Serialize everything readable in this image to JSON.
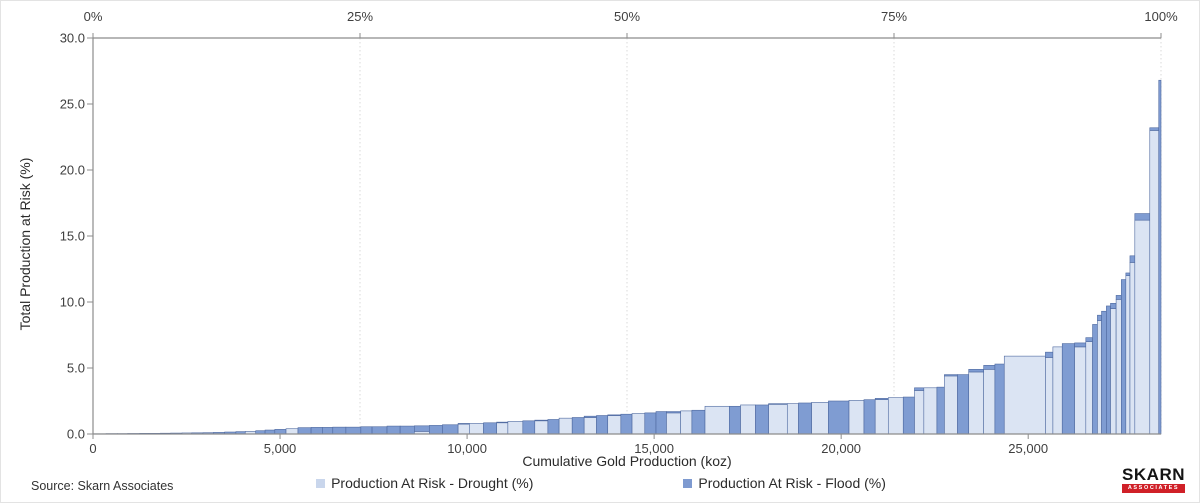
{
  "source_note": "Source: Skarn Associates",
  "logo": {
    "line1": "SKARN",
    "line2": "ASSOCIATES",
    "red": "#d02028"
  },
  "chart_data": {
    "type": "bar",
    "variant": "variable-width stacked cost-curve, mines sorted ascending by total production at risk",
    "title": "",
    "xlabel": "Cumulative Gold Production (koz)",
    "ylabel": "Total Production at Risk (%)",
    "ylim": [
      0,
      30
    ],
    "y_ticks": [
      "0.0",
      "5.0",
      "10.0",
      "15.0",
      "20.0",
      "25.0",
      "30.0"
    ],
    "x_ticks_koz": [
      0,
      5000,
      10000,
      15000,
      20000,
      25000
    ],
    "x_tick_labels": [
      "0",
      "5,000",
      "10,000",
      "15,000",
      "20,000",
      "25,000"
    ],
    "top_axis_ticks_pct": [
      0,
      25,
      50,
      75,
      100
    ],
    "top_axis_tick_labels": [
      "0%",
      "25%",
      "50%",
      "75%",
      "100%"
    ],
    "total_koz": 28550,
    "grid": "vertical dotted gridlines at 25%, 50%, 75%, 100%",
    "legend_position": "bottom-center",
    "series": [
      {
        "name": "Production At Risk - Drought (%)",
        "color": "#dbe4f3",
        "swatch_color": "#c9d6ec",
        "stack_order": "bottom"
      },
      {
        "name": "Production At Risk - Flood (%)",
        "color": "#7f9cd2",
        "swatch_color": "#7e9ad0",
        "stack_order": "top"
      }
    ],
    "bar_border_color": "#4d689f",
    "bars_note": "each bar = [width_koz, drought_pct, flood_pct]; cumulative widths sum to total_koz",
    "bars": [
      [
        350,
        0,
        0.02
      ],
      [
        300,
        0,
        0.03
      ],
      [
        280,
        0.03,
        0
      ],
      [
        320,
        0,
        0.04
      ],
      [
        250,
        0,
        0.05
      ],
      [
        300,
        0.05,
        0
      ],
      [
        280,
        0,
        0.06
      ],
      [
        300,
        0,
        0.07
      ],
      [
        260,
        0.08,
        0
      ],
      [
        300,
        0,
        0.09
      ],
      [
        280,
        0,
        0.1
      ],
      [
        300,
        0,
        0.12
      ],
      [
        300,
        0,
        0.15
      ],
      [
        250,
        0,
        0.18
      ],
      [
        280,
        0.2,
        0
      ],
      [
        250,
        0,
        0.25
      ],
      [
        260,
        0,
        0.3
      ],
      [
        300,
        0,
        0.35
      ],
      [
        320,
        0.4,
        0
      ],
      [
        350,
        0,
        0.48
      ],
      [
        300,
        0,
        0.5
      ],
      [
        280,
        0,
        0.5
      ],
      [
        350,
        0,
        0.52
      ],
      [
        400,
        0,
        0.52
      ],
      [
        300,
        0,
        0.55
      ],
      [
        400,
        0,
        0.55
      ],
      [
        350,
        0,
        0.6
      ],
      [
        380,
        0,
        0.6
      ],
      [
        400,
        0.2,
        0.42
      ],
      [
        350,
        0,
        0.65
      ],
      [
        420,
        0,
        0.7
      ],
      [
        300,
        0.75,
        0.05
      ],
      [
        380,
        0.8,
        0
      ],
      [
        350,
        0,
        0.85
      ],
      [
        300,
        0.85,
        0.05
      ],
      [
        400,
        0.95,
        0
      ],
      [
        320,
        0,
        1.0
      ],
      [
        350,
        1.0,
        0.05
      ],
      [
        300,
        0,
        1.1
      ],
      [
        350,
        1.2,
        0
      ],
      [
        320,
        0,
        1.25
      ],
      [
        330,
        1.25,
        0.1
      ],
      [
        300,
        0,
        1.4
      ],
      [
        350,
        1.4,
        0.05
      ],
      [
        300,
        0,
        1.5
      ],
      [
        340,
        1.55,
        0
      ],
      [
        300,
        0,
        1.6
      ],
      [
        280,
        0,
        1.7
      ],
      [
        380,
        1.6,
        0.1
      ],
      [
        300,
        1.75,
        0
      ],
      [
        350,
        0,
        1.8
      ],
      [
        650,
        2.1,
        0
      ],
      [
        300,
        0,
        2.1
      ],
      [
        400,
        2.2,
        0
      ],
      [
        350,
        0,
        2.2
      ],
      [
        500,
        2.25,
        0.05
      ],
      [
        300,
        2.3,
        0
      ],
      [
        350,
        0,
        2.35
      ],
      [
        450,
        2.4,
        0
      ],
      [
        550,
        0,
        2.5
      ],
      [
        400,
        2.55,
        0
      ],
      [
        300,
        0,
        2.6
      ],
      [
        350,
        2.6,
        0.1
      ],
      [
        400,
        2.75,
        0
      ],
      [
        300,
        0,
        2.8
      ],
      [
        250,
        3.3,
        0.2
      ],
      [
        350,
        3.5,
        0
      ],
      [
        200,
        0,
        3.55
      ],
      [
        350,
        4.4,
        0.1
      ],
      [
        300,
        0,
        4.5
      ],
      [
        400,
        4.7,
        0.2
      ],
      [
        300,
        4.9,
        0.3
      ],
      [
        250,
        0,
        5.3
      ],
      [
        1100,
        5.9,
        0
      ],
      [
        200,
        5.8,
        0.4
      ],
      [
        250,
        6.6,
        0
      ],
      [
        330,
        0,
        6.85
      ],
      [
        300,
        6.6,
        0.3
      ],
      [
        180,
        7.0,
        0.3
      ],
      [
        130,
        0,
        8.3
      ],
      [
        110,
        8.6,
        0.4
      ],
      [
        130,
        0,
        9.3
      ],
      [
        110,
        0,
        9.7
      ],
      [
        150,
        9.5,
        0.4
      ],
      [
        140,
        10.2,
        0.3
      ],
      [
        120,
        0,
        11.7
      ],
      [
        110,
        12.0,
        0.2
      ],
      [
        130,
        13.0,
        0.5
      ],
      [
        400,
        16.2,
        0.5
      ],
      [
        240,
        23.0,
        0.2
      ],
      [
        60,
        0,
        26.8
      ]
    ]
  }
}
